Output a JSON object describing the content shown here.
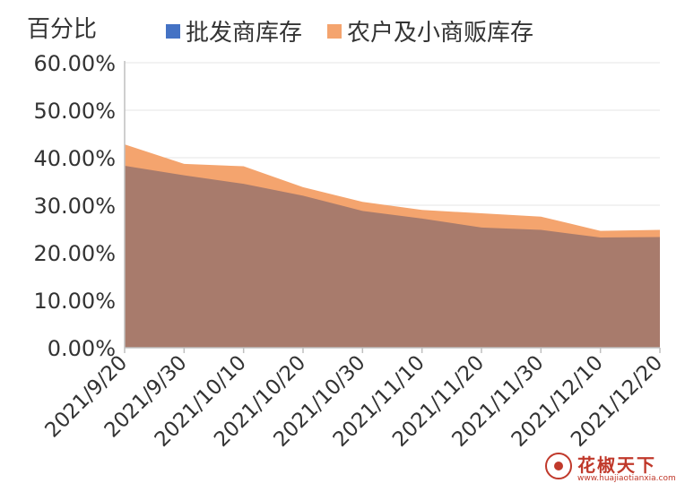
{
  "legend": {
    "y_unit_label": "百分比",
    "series_a_label": "批发商库存",
    "series_b_label": "农户及小商贩库存"
  },
  "colors": {
    "series_a_swatch": "#4472c4",
    "series_b": "#f4a46e",
    "overlap": "#a87b6c",
    "axis": "#bfbfbf",
    "text": "#333333"
  },
  "watermark": {
    "name": "花椒天下",
    "url": "www.huajiaotianxia.com"
  },
  "chart_data": {
    "type": "area",
    "categories": [
      "2021/9/20",
      "2021/9/30",
      "2021/10/10",
      "2021/10/20",
      "2021/10/30",
      "2021/11/10",
      "2021/11/20",
      "2021/11/30",
      "2021/12/10",
      "2021/12/20"
    ],
    "ylim": [
      0,
      60
    ],
    "yticks": [
      "0.00%",
      "10.00%",
      "20.00%",
      "30.00%",
      "40.00%",
      "50.00%",
      "60.00%"
    ],
    "series": [
      {
        "name": "批发商库存",
        "values": [
          38.3,
          36.3,
          34.5,
          32.0,
          28.8,
          27.2,
          25.3,
          24.8,
          23.2,
          23.3
        ]
      },
      {
        "name": "农户及小商贩库存",
        "values": [
          42.8,
          38.7,
          38.2,
          33.8,
          30.7,
          29.0,
          28.3,
          27.6,
          24.6,
          24.8
        ]
      }
    ]
  }
}
